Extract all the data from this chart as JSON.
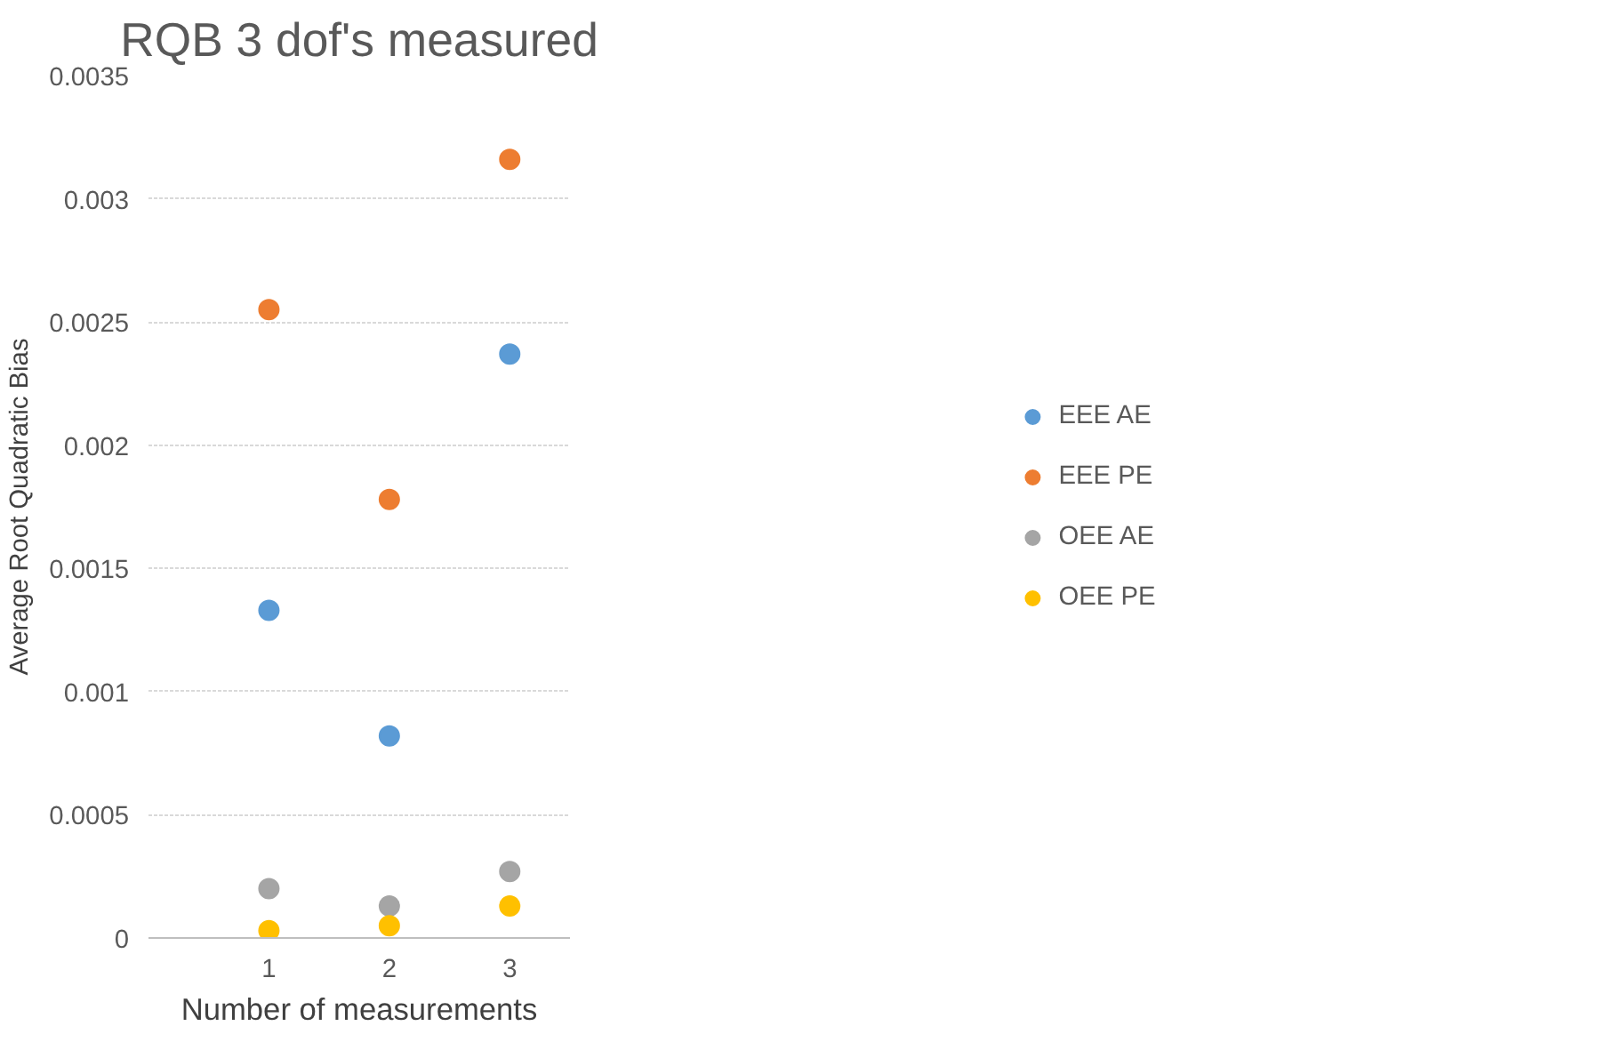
{
  "chart_data": {
    "type": "scatter",
    "title": "RQB 3 dof's measured",
    "xlabel": "Number of measurements",
    "ylabel": "Average Root Quadratic Bias",
    "x": [
      1,
      2,
      3
    ],
    "xlim": [
      0,
      3.5
    ],
    "xticks": [
      1,
      2,
      3
    ],
    "ylim": [
      0,
      0.0035
    ],
    "yticks": [
      0,
      0.0005,
      0.001,
      0.0015,
      0.002,
      0.0025,
      0.003,
      0.0035
    ],
    "series": [
      {
        "name": "EEE AE",
        "color": "#5b9bd5",
        "values": [
          0.00133,
          0.00082,
          0.00237
        ]
      },
      {
        "name": "EEE PE",
        "color": "#ed7d31",
        "values": [
          0.00255,
          0.00178,
          0.00316
        ]
      },
      {
        "name": "OEE AE",
        "color": "#a5a5a5",
        "values": [
          0.0002,
          0.00013,
          0.00027
        ]
      },
      {
        "name": "OEE PE",
        "color": "#ffc000",
        "values": [
          3e-05,
          5e-05,
          0.00013
        ]
      }
    ],
    "grid": "y",
    "legend": "right",
    "marker": "circle"
  }
}
